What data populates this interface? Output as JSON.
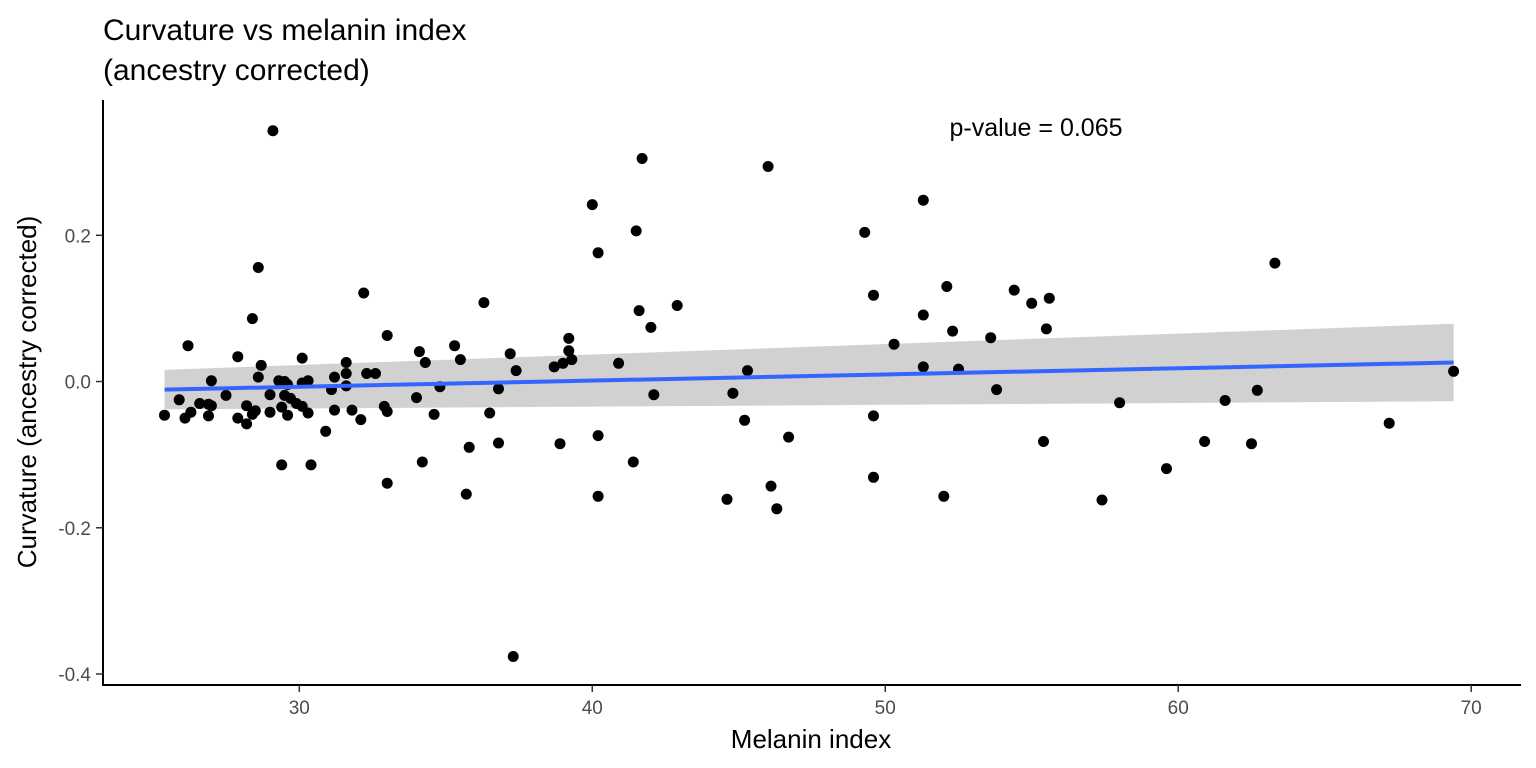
{
  "chart_data": {
    "type": "scatter",
    "title_line1": "Curvature vs melanin index",
    "title_line2": "(ancestry corrected)",
    "xlabel": "Melanin index",
    "ylabel": "Curvature (ancestry corrected)",
    "annotation": "p-value = 0.065",
    "xlim": [
      23.3,
      71.7
    ],
    "ylim": [
      -0.415,
      0.385
    ],
    "x_ticks": [
      30,
      40,
      50,
      60,
      70
    ],
    "y_ticks": [
      0.2,
      0.0,
      -0.2,
      -0.4
    ],
    "x_tick_labels": [
      "30",
      "40",
      "50",
      "60",
      "70"
    ],
    "y_tick_labels": [
      "0.2",
      "0.0",
      "-0.2",
      "-0.4"
    ],
    "grid": false,
    "colors": {
      "points": "#000000",
      "fit_line": "#3366ff",
      "ribbon": "#cccccc"
    },
    "fit": {
      "x": [
        25.4,
        69.4
      ],
      "y": [
        -0.011,
        0.026
      ],
      "ribbon_upper": [
        0.016,
        0.079
      ],
      "ribbon_lower": [
        -0.038,
        -0.027
      ]
    },
    "points": [
      [
        29.1,
        0.343
      ],
      [
        41.7,
        0.305
      ],
      [
        46.0,
        0.294
      ],
      [
        51.3,
        0.248
      ],
      [
        40.0,
        0.242
      ],
      [
        41.5,
        0.206
      ],
      [
        49.3,
        0.204
      ],
      [
        40.2,
        0.176
      ],
      [
        63.3,
        0.162
      ],
      [
        28.6,
        0.156
      ],
      [
        52.1,
        0.13
      ],
      [
        54.4,
        0.125
      ],
      [
        32.2,
        0.121
      ],
      [
        49.6,
        0.118
      ],
      [
        55.6,
        0.114
      ],
      [
        36.3,
        0.108
      ],
      [
        55.0,
        0.107
      ],
      [
        42.9,
        0.104
      ],
      [
        41.6,
        0.097
      ],
      [
        51.3,
        0.091
      ],
      [
        28.4,
        0.086
      ],
      [
        42.0,
        0.074
      ],
      [
        55.5,
        0.072
      ],
      [
        52.3,
        0.069
      ],
      [
        33.0,
        0.063
      ],
      [
        53.6,
        0.06
      ],
      [
        39.2,
        0.059
      ],
      [
        50.3,
        0.051
      ],
      [
        26.2,
        0.049
      ],
      [
        35.3,
        0.049
      ],
      [
        39.2,
        0.042
      ],
      [
        34.1,
        0.041
      ],
      [
        37.2,
        0.038
      ],
      [
        27.9,
        0.034
      ],
      [
        30.1,
        0.032
      ],
      [
        35.5,
        0.03
      ],
      [
        39.3,
        0.03
      ],
      [
        31.6,
        0.026
      ],
      [
        34.3,
        0.026
      ],
      [
        40.9,
        0.025
      ],
      [
        39.0,
        0.025
      ],
      [
        28.7,
        0.022
      ],
      [
        38.7,
        0.02
      ],
      [
        51.3,
        0.02
      ],
      [
        52.5,
        0.017
      ],
      [
        37.4,
        0.015
      ],
      [
        45.3,
        0.015
      ],
      [
        69.4,
        0.014
      ],
      [
        32.3,
        0.011
      ],
      [
        32.6,
        0.011
      ],
      [
        31.6,
        0.011
      ],
      [
        28.6,
        0.006
      ],
      [
        31.2,
        0.006
      ],
      [
        27.0,
        0.001
      ],
      [
        29.3,
        0.001
      ],
      [
        30.3,
        0.001
      ],
      [
        29.5,
        0.0
      ],
      [
        30.1,
        -0.002
      ],
      [
        29.6,
        -0.004
      ],
      [
        31.6,
        -0.006
      ],
      [
        34.8,
        -0.007
      ],
      [
        36.8,
        -0.01
      ],
      [
        31.1,
        -0.011
      ],
      [
        53.8,
        -0.011
      ],
      [
        62.7,
        -0.012
      ],
      [
        44.8,
        -0.016
      ],
      [
        42.1,
        -0.018
      ],
      [
        29.0,
        -0.018
      ],
      [
        27.5,
        -0.019
      ],
      [
        29.5,
        -0.019
      ],
      [
        34.0,
        -0.022
      ],
      [
        29.7,
        -0.023
      ],
      [
        25.9,
        -0.025
      ],
      [
        61.6,
        -0.026
      ],
      [
        58.0,
        -0.029
      ],
      [
        26.6,
        -0.03
      ],
      [
        29.9,
        -0.03
      ],
      [
        26.9,
        -0.031
      ],
      [
        27.0,
        -0.033
      ],
      [
        28.2,
        -0.033
      ],
      [
        30.1,
        -0.034
      ],
      [
        29.4,
        -0.035
      ],
      [
        32.9,
        -0.034
      ],
      [
        31.8,
        -0.039
      ],
      [
        31.2,
        -0.039
      ],
      [
        33.0,
        -0.041
      ],
      [
        28.5,
        -0.04
      ],
      [
        26.3,
        -0.042
      ],
      [
        29.0,
        -0.042
      ],
      [
        30.3,
        -0.043
      ],
      [
        36.5,
        -0.043
      ],
      [
        34.6,
        -0.045
      ],
      [
        28.4,
        -0.045
      ],
      [
        26.9,
        -0.047
      ],
      [
        25.4,
        -0.046
      ],
      [
        29.6,
        -0.046
      ],
      [
        49.6,
        -0.047
      ],
      [
        26.1,
        -0.05
      ],
      [
        27.9,
        -0.05
      ],
      [
        32.1,
        -0.052
      ],
      [
        45.2,
        -0.053
      ],
      [
        67.2,
        -0.057
      ],
      [
        28.2,
        -0.058
      ],
      [
        30.9,
        -0.068
      ],
      [
        40.2,
        -0.074
      ],
      [
        46.7,
        -0.076
      ],
      [
        55.4,
        -0.082
      ],
      [
        60.9,
        -0.082
      ],
      [
        36.8,
        -0.084
      ],
      [
        38.9,
        -0.085
      ],
      [
        62.5,
        -0.085
      ],
      [
        35.8,
        -0.09
      ],
      [
        34.2,
        -0.11
      ],
      [
        41.4,
        -0.11
      ],
      [
        29.4,
        -0.114
      ],
      [
        30.4,
        -0.114
      ],
      [
        59.6,
        -0.119
      ],
      [
        49.6,
        -0.131
      ],
      [
        33.0,
        -0.139
      ],
      [
        46.1,
        -0.143
      ],
      [
        35.7,
        -0.154
      ],
      [
        40.2,
        -0.157
      ],
      [
        52.0,
        -0.157
      ],
      [
        44.6,
        -0.161
      ],
      [
        57.4,
        -0.162
      ],
      [
        46.3,
        -0.174
      ],
      [
        37.3,
        -0.376
      ]
    ]
  }
}
